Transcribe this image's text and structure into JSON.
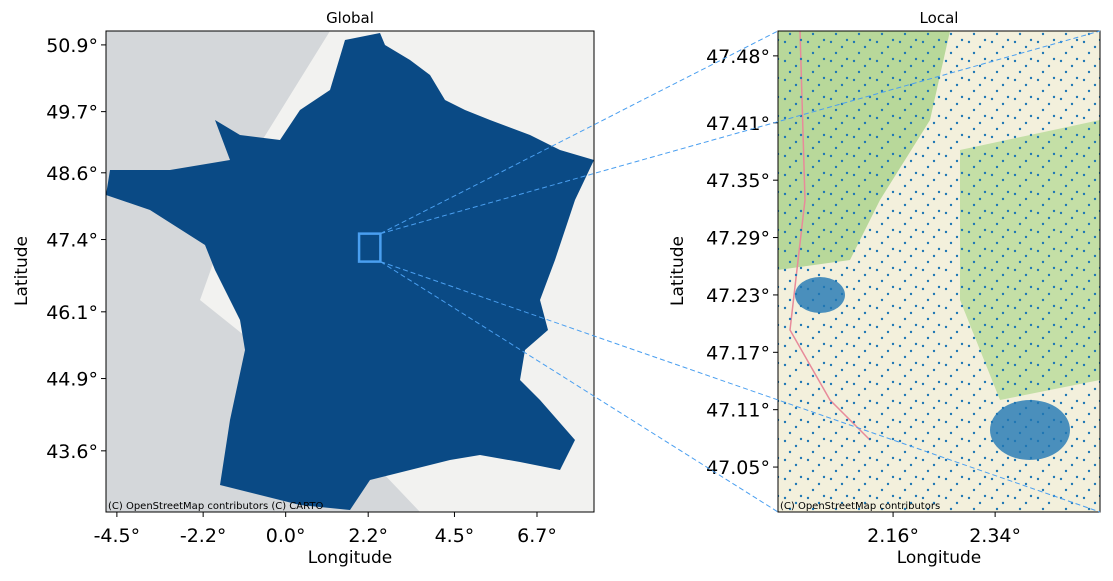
{
  "chart_data": [
    {
      "type": "map",
      "title": "Global",
      "xlabel": "Longitude",
      "ylabel": "Latitude",
      "attribution": "(C) OpenStreetMap contributors (C) CARTO",
      "xlim": [
        -4.79,
        8.22
      ],
      "ylim": [
        42.5,
        51.15
      ],
      "xticks": [
        {
          "value": -4.5,
          "label": "-4.5°"
        },
        {
          "value": -2.2,
          "label": "-2.2°"
        },
        {
          "value": 0.0,
          "label": "0.0°"
        },
        {
          "value": 2.2,
          "label": "2.2°"
        },
        {
          "value": 4.5,
          "label": "4.5°"
        },
        {
          "value": 6.7,
          "label": "6.7°"
        }
      ],
      "yticks": [
        {
          "value": 43.6,
          "label": "43.6°"
        },
        {
          "value": 44.9,
          "label": "44.9°"
        },
        {
          "value": 46.1,
          "label": "46.1°"
        },
        {
          "value": 47.4,
          "label": "47.4°"
        },
        {
          "value": 48.6,
          "label": "48.6°"
        },
        {
          "value": 49.7,
          "label": "49.7°"
        },
        {
          "value": 50.9,
          "label": "50.9°"
        }
      ],
      "color": "#0a4a85"
    },
    {
      "type": "map",
      "title": "Local",
      "xlabel": "Longitude",
      "ylabel": "Latitude",
      "attribution": "(C) OpenStreetMap contributors",
      "xlim": [
        1.957,
        2.525
      ],
      "ylim": [
        47.003,
        47.506
      ],
      "xticks": [
        {
          "value": 2.16,
          "label": "2.16°"
        },
        {
          "value": 2.34,
          "label": "2.34°"
        }
      ],
      "yticks": [
        {
          "value": 47.05,
          "label": "47.05°"
        },
        {
          "value": 47.11,
          "label": "47.11°"
        },
        {
          "value": 47.17,
          "label": "47.17°"
        },
        {
          "value": 47.23,
          "label": "47.23°"
        },
        {
          "value": 47.29,
          "label": "47.29°"
        },
        {
          "value": 47.35,
          "label": "47.35°"
        },
        {
          "value": 47.41,
          "label": "47.41°"
        },
        {
          "value": 47.48,
          "label": "47.48°"
        }
      ],
      "color": "#1f77b4"
    }
  ]
}
